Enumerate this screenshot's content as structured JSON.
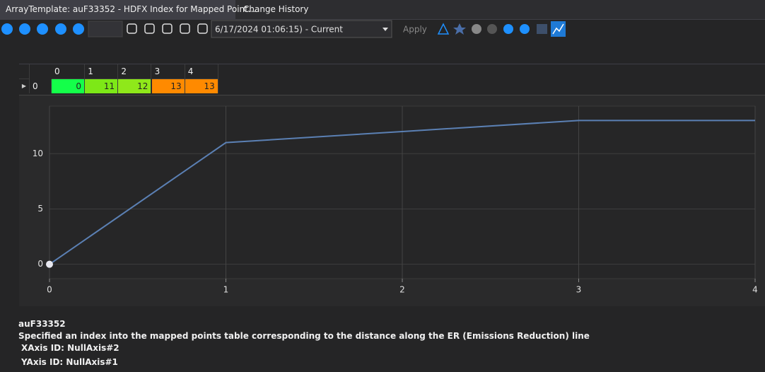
{
  "tabs": [
    "ArrayTemplate: auF33352 - HDFX Index for Mapped Point...",
    "Change History"
  ],
  "toolbar": {
    "version": "6/17/2024 01:06:15) - Current",
    "apply": "Apply"
  },
  "table": {
    "row_label": "0",
    "cell_colors": [
      "#14ff4a",
      "#7de817",
      "#8fe81a",
      "#ff8a00",
      "#ff8a00"
    ]
  },
  "chart_data": {
    "type": "line",
    "x": [
      0,
      1,
      2,
      3,
      4
    ],
    "values": [
      0,
      11,
      12,
      13,
      13
    ],
    "color": "#5b80b4",
    "xlim": [
      0,
      4
    ],
    "ylim": [
      -1.3,
      14.3
    ],
    "xticks": [
      0,
      1,
      2,
      3,
      4
    ],
    "yticks": [
      0,
      5,
      10
    ],
    "grid": true
  },
  "footer": {
    "name": "auF33352",
    "description": "Specified an index into the mapped points table corresponding to the distance along the ER (Emissions Reduction) line",
    "x_axis": "XAxis ID: NullAxis#2",
    "y_axis": "YAxis ID: NullAxis#1"
  }
}
